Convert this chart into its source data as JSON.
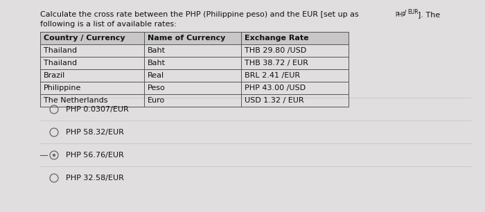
{
  "title_line1": "Calculate the cross rate between the PHP (Philippine peso) and the EUR [set up as ",
  "title_super": "PHP",
  "title_sub": "EUR",
  "title_end": "]. The",
  "title_line2": "following is a list of available rates:",
  "table_headers": [
    "Country / Currency",
    "Name of Currency",
    "Exchange Rate"
  ],
  "table_rows": [
    [
      "Thailand",
      "Baht",
      "THB 29.80 /USD"
    ],
    [
      "Thailand",
      "Baht",
      "THB 38.72 / EUR"
    ],
    [
      "Brazil",
      "Real",
      "BRL 2.41 /EUR"
    ],
    [
      "Philippine",
      "Peso",
      "PHP 43.00 /USD"
    ],
    [
      "The Netherlands",
      "Euro",
      "USD 1.32 / EUR"
    ]
  ],
  "options": [
    "PHP 0.0307/EUR",
    "PHP 58.32/EUR",
    "PHP 56.76/EUR",
    "PHP 32.58/EUR"
  ],
  "selected_option_index": 2,
  "bg_color": "#e0dede",
  "table_header_bg": "#c8c6c6",
  "table_border_color": "#555555",
  "text_color": "#111111",
  "radio_color": "#666666",
  "font_size": 8.0,
  "header_font_size": 8.0,
  "option_font_size": 8.0
}
